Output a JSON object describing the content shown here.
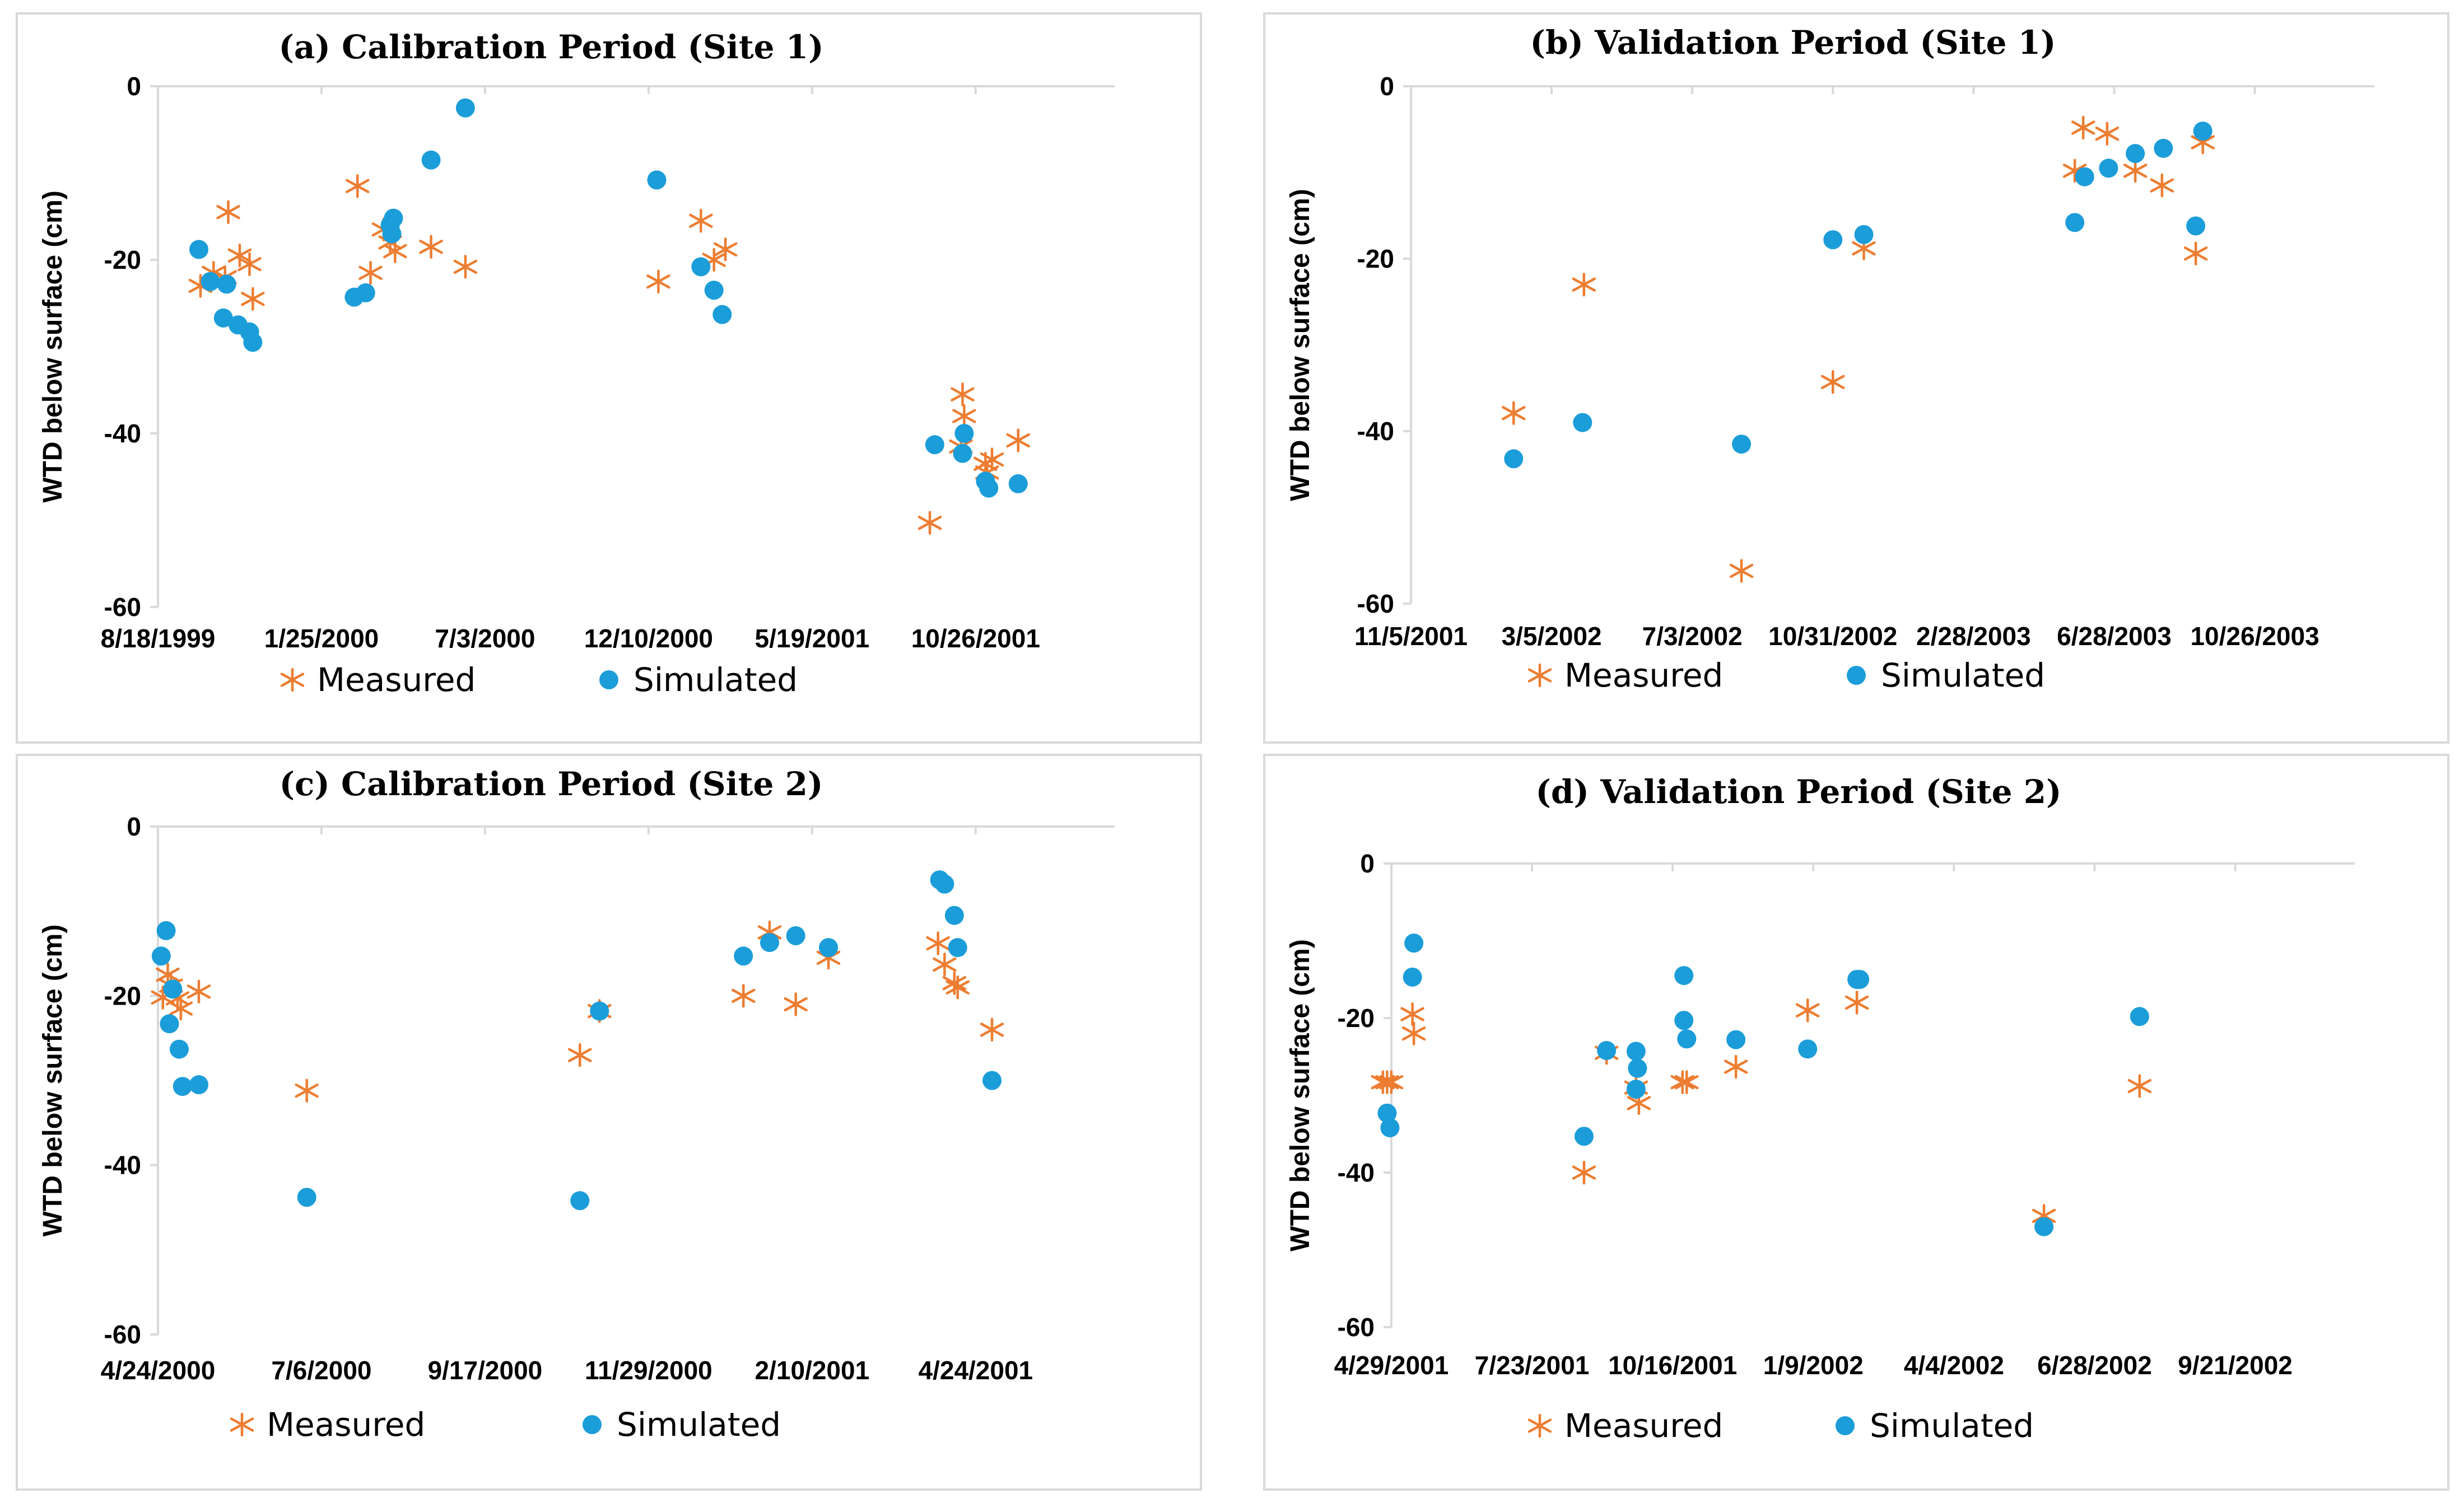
{
  "colors": {
    "measured": "#ED7D31",
    "simulated": "#1B9DD9",
    "axis": "#d9d9d9"
  },
  "chart_data": [
    {
      "id": "a",
      "type": "scatter",
      "title": "(a) Calibration Period (Site 1)",
      "ylabel": "WTD below surface (cm)",
      "ylim": [
        -60,
        0
      ],
      "yticks": [
        0,
        -20,
        -40,
        -60
      ],
      "xticks": [
        "8/18/1999",
        "1/25/2000",
        "7/3/2000",
        "12/10/2000",
        "5/19/2001",
        "10/26/2001"
      ],
      "x_tick_domain": [
        0,
        5
      ],
      "legend": [
        "Measured",
        "Simulated"
      ],
      "series": [
        {
          "name": "Measured",
          "marker": "asterisk",
          "points": [
            [
              0.26,
              -23.0
            ],
            [
              0.34,
              -21.5
            ],
            [
              0.41,
              -22.0
            ],
            [
              0.43,
              -14.5
            ],
            [
              0.5,
              -19.5
            ],
            [
              0.56,
              -20.5
            ],
            [
              0.58,
              -24.5
            ],
            [
              1.22,
              -11.5
            ],
            [
              1.3,
              -21.5
            ],
            [
              1.38,
              -16.5
            ],
            [
              1.42,
              -18.0
            ],
            [
              1.45,
              -19.0
            ],
            [
              1.67,
              -18.5
            ],
            [
              1.88,
              -20.8
            ],
            [
              3.06,
              -22.5
            ],
            [
              3.32,
              -15.5
            ],
            [
              3.4,
              -20.0
            ],
            [
              3.47,
              -18.8
            ],
            [
              4.72,
              -50.3
            ],
            [
              4.92,
              -35.5
            ],
            [
              4.93,
              -38.0
            ],
            [
              4.91,
              -41.5
            ],
            [
              5.06,
              -43.5
            ],
            [
              5.1,
              -43.0
            ],
            [
              5.07,
              -44.5
            ],
            [
              5.26,
              -40.8
            ]
          ]
        },
        {
          "name": "Simulated",
          "marker": "circle",
          "points": [
            [
              0.25,
              -18.8
            ],
            [
              0.32,
              -22.5
            ],
            [
              0.4,
              -26.7
            ],
            [
              0.42,
              -22.8
            ],
            [
              0.49,
              -27.5
            ],
            [
              0.56,
              -28.3
            ],
            [
              0.58,
              -29.5
            ],
            [
              1.2,
              -24.3
            ],
            [
              1.27,
              -23.8
            ],
            [
              1.42,
              -16.0
            ],
            [
              1.44,
              -15.2
            ],
            [
              1.43,
              -17.0
            ],
            [
              1.67,
              -8.5
            ],
            [
              1.88,
              -2.5
            ],
            [
              3.05,
              -10.8
            ],
            [
              3.32,
              -20.8
            ],
            [
              3.4,
              -23.5
            ],
            [
              3.45,
              -26.3
            ],
            [
              4.75,
              -41.3
            ],
            [
              4.92,
              -42.3
            ],
            [
              4.93,
              -40.0
            ],
            [
              5.06,
              -45.5
            ],
            [
              5.08,
              -46.3
            ],
            [
              5.26,
              -45.8
            ]
          ]
        }
      ]
    },
    {
      "id": "b",
      "type": "scatter",
      "title": "(b) Validation Period (Site 1)",
      "ylabel": "WTD below surface (cm)",
      "ylim": [
        -60,
        0
      ],
      "yticks": [
        0,
        -20,
        -40,
        -60
      ],
      "xticks": [
        "11/5/2001",
        "3/5/2002",
        "7/3/2002",
        "10/31/2002",
        "2/28/2003",
        "6/28/2003",
        "10/26/2003"
      ],
      "x_tick_domain": [
        0,
        6
      ],
      "legend": [
        "Measured",
        "Simulated"
      ],
      "series": [
        {
          "name": "Measured",
          "marker": "asterisk",
          "points": [
            [
              0.73,
              -37.9
            ],
            [
              1.23,
              -23.0
            ],
            [
              2.35,
              -56.2
            ],
            [
              3.0,
              -34.3
            ],
            [
              3.22,
              -18.8
            ],
            [
              4.72,
              -9.8
            ],
            [
              4.78,
              -4.8
            ],
            [
              4.95,
              -5.5
            ],
            [
              5.15,
              -9.8
            ],
            [
              5.34,
              -11.5
            ],
            [
              5.58,
              -19.4
            ],
            [
              5.63,
              -6.5
            ]
          ]
        },
        {
          "name": "Simulated",
          "marker": "circle",
          "points": [
            [
              0.73,
              -43.2
            ],
            [
              1.22,
              -39.0
            ],
            [
              2.35,
              -41.5
            ],
            [
              3.0,
              -17.8
            ],
            [
              3.22,
              -17.2
            ],
            [
              4.72,
              -15.8
            ],
            [
              4.79,
              -10.5
            ],
            [
              4.96,
              -9.5
            ],
            [
              5.15,
              -7.8
            ],
            [
              5.35,
              -7.2
            ],
            [
              5.58,
              -16.2
            ],
            [
              5.63,
              -5.2
            ]
          ]
        }
      ]
    },
    {
      "id": "c",
      "type": "scatter",
      "title": "(c) Calibration Period (Site 2)",
      "ylabel": "WTD below surface (cm)",
      "ylim": [
        -60,
        0
      ],
      "yticks": [
        0,
        -20,
        -40,
        -60
      ],
      "xticks": [
        "4/24/2000",
        "7/6/2000",
        "9/17/2000",
        "11/29/2000",
        "2/10/2001",
        "4/24/2001"
      ],
      "x_tick_domain": [
        0,
        5
      ],
      "legend": [
        "Measured",
        "Simulated"
      ],
      "series": [
        {
          "name": "Measured",
          "marker": "asterisk",
          "points": [
            [
              0.03,
              -20.2
            ],
            [
              0.06,
              -17.5
            ],
            [
              0.08,
              -18.8
            ],
            [
              0.12,
              -20.3
            ],
            [
              0.14,
              -21.5
            ],
            [
              0.25,
              -19.5
            ],
            [
              0.91,
              -31.2
            ],
            [
              2.58,
              -27.0
            ],
            [
              2.7,
              -21.8
            ],
            [
              3.58,
              -20.0
            ],
            [
              3.74,
              -12.5
            ],
            [
              3.9,
              -21.0
            ],
            [
              4.1,
              -15.5
            ],
            [
              4.77,
              -13.8
            ],
            [
              4.81,
              -16.3
            ],
            [
              4.87,
              -18.5
            ],
            [
              4.89,
              -19.0
            ],
            [
              5.1,
              -24.0
            ]
          ]
        },
        {
          "name": "Simulated",
          "marker": "circle",
          "points": [
            [
              0.02,
              -15.3
            ],
            [
              0.05,
              -12.3
            ],
            [
              0.07,
              -23.3
            ],
            [
              0.09,
              -19.2
            ],
            [
              0.13,
              -26.3
            ],
            [
              0.15,
              -30.7
            ],
            [
              0.25,
              -30.5
            ],
            [
              0.91,
              -43.8
            ],
            [
              2.58,
              -44.2
            ],
            [
              2.7,
              -21.8
            ],
            [
              3.58,
              -15.3
            ],
            [
              3.74,
              -13.7
            ],
            [
              3.9,
              -12.9
            ],
            [
              4.1,
              -14.3
            ],
            [
              4.78,
              -6.3
            ],
            [
              4.81,
              -6.8
            ],
            [
              4.87,
              -10.5
            ],
            [
              4.89,
              -14.3
            ],
            [
              5.1,
              -30.0
            ]
          ]
        }
      ]
    },
    {
      "id": "d",
      "type": "scatter",
      "title": "(d) Validation Period (Site 2)",
      "ylabel": "WTD below surface (cm)",
      "ylim": [
        -60,
        0
      ],
      "yticks": [
        0,
        -20,
        -40,
        -60
      ],
      "xticks": [
        "4/29/2001",
        "7/23/2001",
        "10/16/2001",
        "1/9/2002",
        "4/4/2002",
        "6/28/2002",
        "9/21/2002"
      ],
      "x_tick_domain": [
        0,
        6
      ],
      "legend": [
        "Measured",
        "Simulated"
      ],
      "series": [
        {
          "name": "Measured",
          "marker": "asterisk",
          "points": [
            [
              -0.06,
              -28.3
            ],
            [
              -0.03,
              -28.3
            ],
            [
              0.0,
              -28.3
            ],
            [
              0.15,
              -19.5
            ],
            [
              0.16,
              -22.0
            ],
            [
              1.37,
              -40.0
            ],
            [
              1.53,
              -24.5
            ],
            [
              1.74,
              -29.0
            ],
            [
              1.76,
              -31.0
            ],
            [
              2.07,
              -28.3
            ],
            [
              2.1,
              -28.3
            ],
            [
              2.45,
              -26.3
            ],
            [
              2.96,
              -19.0
            ],
            [
              3.31,
              -18.0
            ],
            [
              4.64,
              -45.6
            ],
            [
              5.32,
              -28.8
            ]
          ]
        },
        {
          "name": "Simulated",
          "marker": "circle",
          "points": [
            [
              -0.03,
              -32.3
            ],
            [
              -0.01,
              -34.2
            ],
            [
              0.15,
              -14.7
            ],
            [
              0.16,
              -10.3
            ],
            [
              1.37,
              -35.3
            ],
            [
              1.53,
              -24.2
            ],
            [
              1.74,
              -24.3
            ],
            [
              1.75,
              -26.5
            ],
            [
              1.74,
              -29.2
            ],
            [
              2.08,
              -14.5
            ],
            [
              2.08,
              -20.3
            ],
            [
              2.1,
              -22.7
            ],
            [
              2.45,
              -22.8
            ],
            [
              2.96,
              -24.0
            ],
            [
              3.31,
              -15.0
            ],
            [
              3.33,
              -15.0
            ],
            [
              4.64,
              -47.0
            ],
            [
              5.32,
              -19.8
            ]
          ]
        }
      ]
    }
  ]
}
